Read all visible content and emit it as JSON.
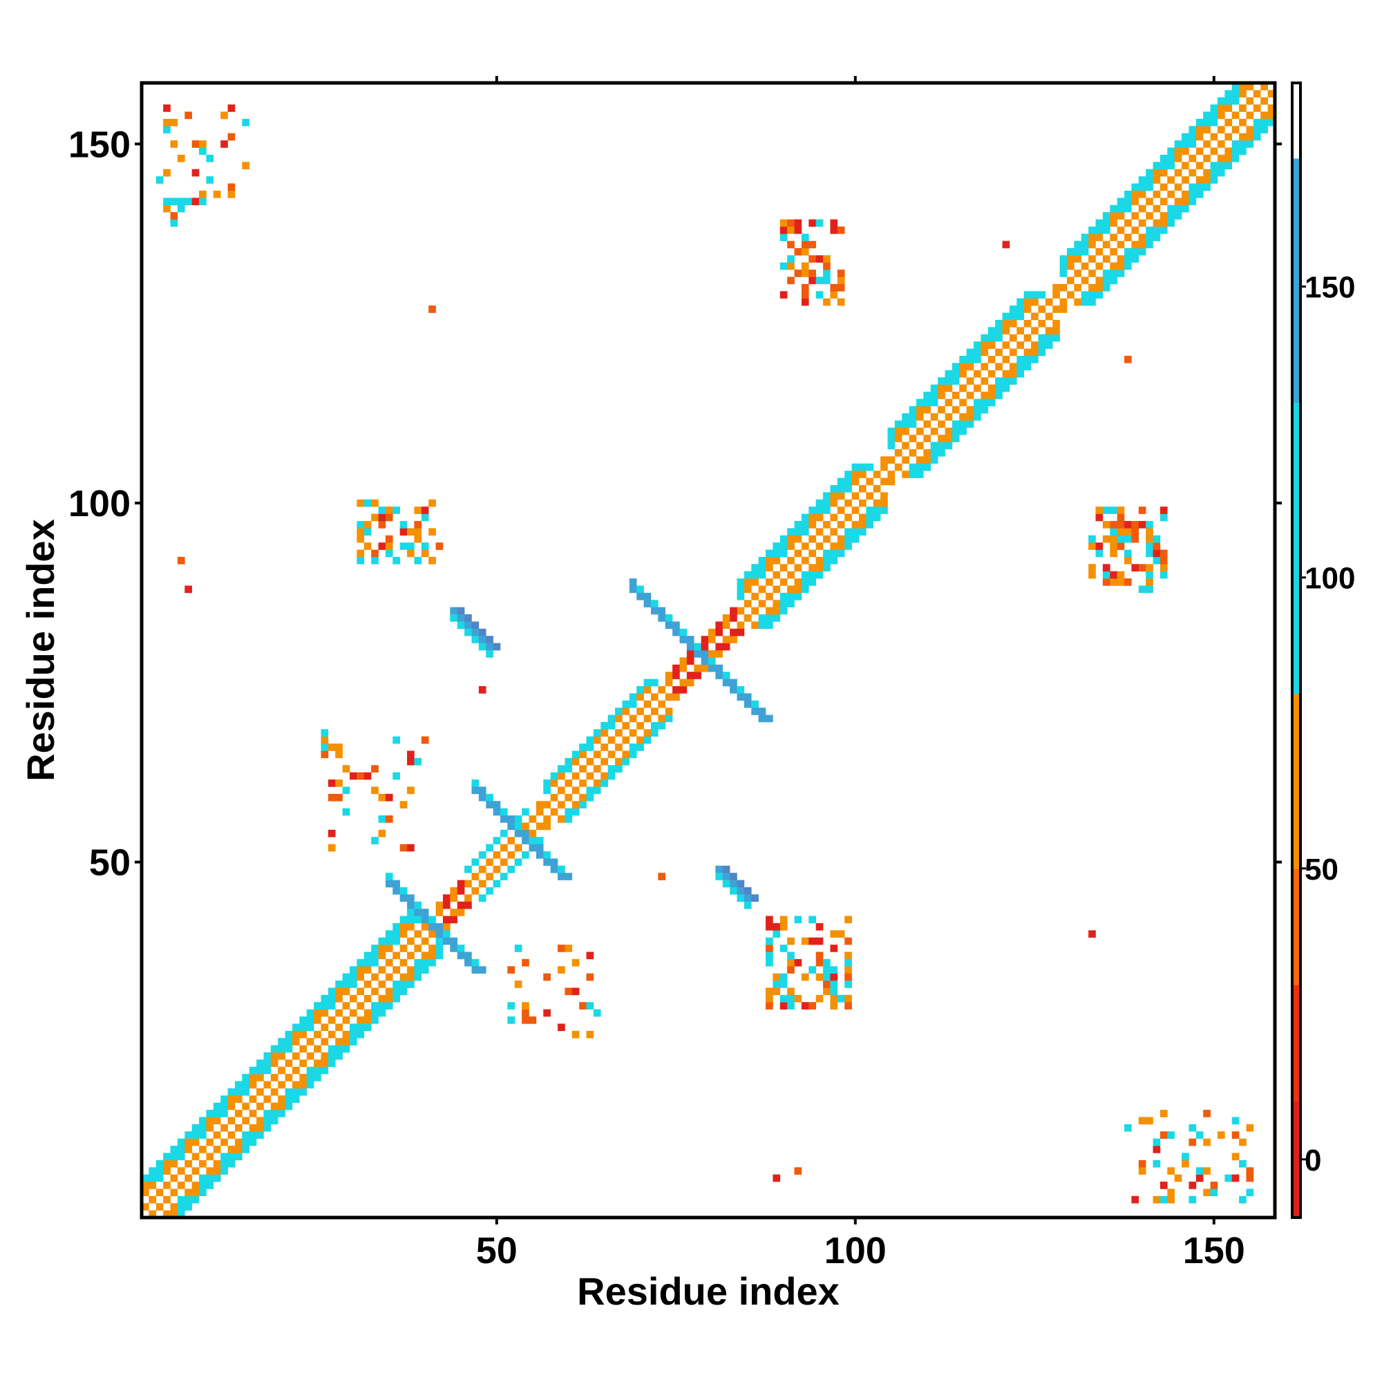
{
  "chart_data": {
    "type": "heatmap",
    "xlabel": "Residue index",
    "ylabel": "Residue index",
    "xlim": [
      1,
      158
    ],
    "ylim": [
      1,
      158
    ],
    "x_ticks": [
      "50",
      "100",
      "150"
    ],
    "y_ticks": [
      "50",
      "100",
      "150"
    ],
    "x_tick_values": [
      50,
      100,
      150
    ],
    "y_tick_values": [
      50,
      100,
      150
    ],
    "colorbar": {
      "min": -10,
      "max": 185,
      "ticks": [
        "0",
        "50",
        "100",
        "150"
      ],
      "tick_values": [
        0,
        50,
        100,
        150
      ],
      "segments": [
        {
          "from": -10,
          "to": 10,
          "color": "#e0201a"
        },
        {
          "from": 10,
          "to": 30,
          "color": "#f03010"
        },
        {
          "from": 30,
          "to": 50,
          "color": "#f26a0a"
        },
        {
          "from": 50,
          "to": 80,
          "color": "#f59000"
        },
        {
          "from": 80,
          "to": 130,
          "color": "#18d8e8"
        },
        {
          "from": 130,
          "to": 172,
          "color": "#3aa6d8"
        },
        {
          "from": 172,
          "to": 185,
          "color": "#ffffff"
        }
      ]
    },
    "palette": {
      "red": "#e3211b",
      "orange_red": "#f05a0c",
      "orange": "#f59000",
      "cyan": "#1ad8e6",
      "blue": "#3ea2d6",
      "steel": "#4f86c6"
    },
    "diagonal": {
      "from": 1,
      "to": 158
    },
    "helix_segments": [
      {
        "from": 1,
        "to": 42,
        "halfwidth": 5
      },
      {
        "from": 46,
        "to": 56,
        "halfwidth": 3
      },
      {
        "from": 57,
        "to": 74,
        "halfwidth": 4
      },
      {
        "from": 84,
        "to": 104,
        "halfwidth": 5
      },
      {
        "from": 105,
        "to": 128,
        "halfwidth": 5
      },
      {
        "from": 129,
        "to": 158,
        "halfwidth": 5
      }
    ],
    "patches": [
      {
        "x": [
          90,
          98
        ],
        "y": [
          128,
          139
        ],
        "density": 0.45
      },
      {
        "x": [
          31,
          42
        ],
        "y": [
          92,
          100
        ],
        "density": 0.45
      },
      {
        "x": [
          133,
          143
        ],
        "y": [
          88,
          99
        ],
        "density": 0.45
      },
      {
        "x": [
          88,
          99
        ],
        "y": [
          30,
          42
        ],
        "density": 0.45
      },
      {
        "x": [
          26,
          40
        ],
        "y": [
          52,
          68
        ],
        "density": 0.12
      },
      {
        "x": [
          52,
          64
        ],
        "y": [
          26,
          38
        ],
        "density": 0.12
      },
      {
        "x": [
          3,
          15
        ],
        "y": [
          138,
          155
        ],
        "density": 0.15
      },
      {
        "x": [
          138,
          155
        ],
        "y": [
          3,
          15
        ],
        "density": 0.15
      }
    ],
    "cross_arms": [
      {
        "cx": 78,
        "cy": 79,
        "length": 9
      },
      {
        "cx": 41,
        "cy": 41,
        "length": 6
      },
      {
        "cx": 53,
        "cy": 54,
        "length": 6
      }
    ],
    "blue_strips": [
      {
        "from": [
          44,
          85
        ],
        "to": [
          49,
          80
        ]
      },
      {
        "from": [
          81,
          49
        ],
        "to": [
          85,
          45
        ]
      }
    ],
    "singles": [
      [
        41,
        127
      ],
      [
        7,
        88
      ],
      [
        6,
        92
      ],
      [
        89,
        6
      ],
      [
        92,
        7
      ],
      [
        133,
        40
      ],
      [
        138,
        120
      ],
      [
        121,
        136
      ],
      [
        73,
        48
      ],
      [
        48,
        74
      ]
    ]
  }
}
